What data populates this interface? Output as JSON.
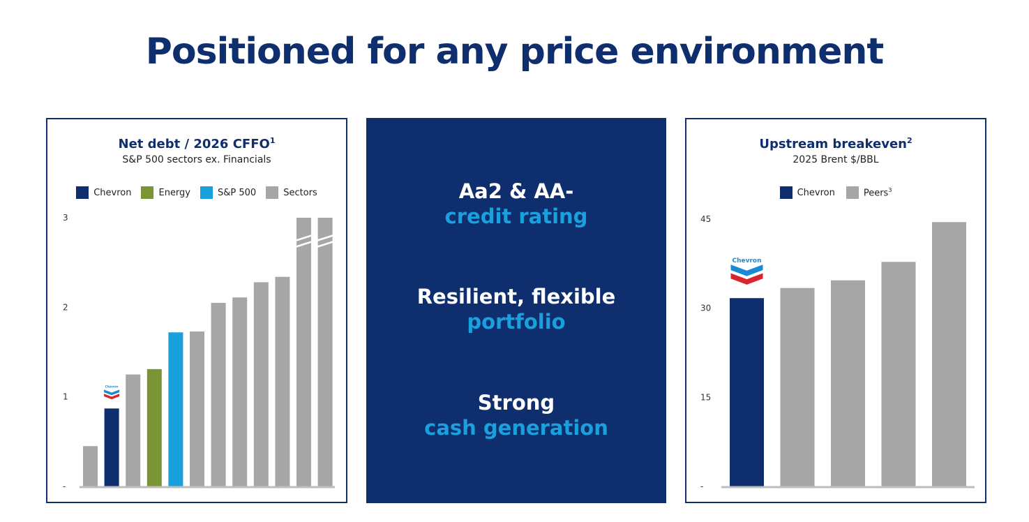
{
  "page": {
    "title": "Positioned for any price environment"
  },
  "colors": {
    "navy": "#0f2e6e",
    "green": "#7a9634",
    "cyan": "#1aa0dc",
    "gray": "#a6a6a6",
    "chevron_red": "#d9262e",
    "chevron_blue": "#1a8ad4"
  },
  "left_chart": {
    "title": "Net debt / 2026 CFFO",
    "title_sup": "1",
    "subtitle": "S&P 500 sectors ex. Financials",
    "legend": [
      {
        "label": "Chevron",
        "color": "#0f2e6e"
      },
      {
        "label": "Energy",
        "color": "#7a9634"
      },
      {
        "label": "S&P 500",
        "color": "#1aa0dc"
      },
      {
        "label": "Sectors",
        "color": "#a6a6a6"
      }
    ],
    "logo_text": "Chevron"
  },
  "middle_panel": {
    "blocks": [
      {
        "white": "Aa2 & AA-",
        "blue": "credit rating"
      },
      {
        "white": "Resilient, flexible",
        "blue": "portfolio"
      },
      {
        "white": "Strong",
        "blue": "cash generation"
      }
    ]
  },
  "right_chart": {
    "title": "Upstream breakeven",
    "title_sup": "2",
    "subtitle": "2025 Brent $/BBL",
    "legend": [
      {
        "label": "Chevron",
        "color": "#0f2e6e",
        "sup": ""
      },
      {
        "label": "Peers",
        "color": "#a6a6a6",
        "sup": "3"
      }
    ],
    "logo_text": "Chevron"
  },
  "chart_data": [
    {
      "type": "bar",
      "title": "Net debt / 2026 CFFO",
      "subtitle": "S&P 500 sectors ex. Financials",
      "y_ticks": [
        "-",
        "1",
        "2",
        "3"
      ],
      "ylim": [
        0,
        3
      ],
      "grid": false,
      "legend_position": "top-center",
      "axis_break_on_last_two": true,
      "series": [
        {
          "name": "Sectors",
          "values": [
            0.45,
            null,
            1.25,
            null,
            null,
            1.73,
            2.05,
            2.11,
            2.28,
            2.34,
            3.0,
            3.0
          ]
        },
        {
          "name": "Chevron",
          "values": [
            null,
            0.87,
            null,
            null,
            null,
            null,
            null,
            null,
            null,
            null,
            null,
            null
          ]
        },
        {
          "name": "Energy",
          "values": [
            null,
            null,
            null,
            1.31,
            null,
            null,
            null,
            null,
            null,
            null,
            null,
            null
          ]
        },
        {
          "name": "S&P 500",
          "values": [
            null,
            null,
            null,
            null,
            1.72,
            null,
            null,
            null,
            null,
            null,
            null,
            null
          ]
        }
      ],
      "bar_colors": [
        "#a6a6a6",
        "#0f2e6e",
        "#a6a6a6",
        "#7a9634",
        "#1aa0dc",
        "#a6a6a6",
        "#a6a6a6",
        "#a6a6a6",
        "#a6a6a6",
        "#a6a6a6",
        "#a6a6a6",
        "#a6a6a6"
      ]
    },
    {
      "type": "bar",
      "title": "Upstream breakeven",
      "subtitle": "2025 Brent $/BBL",
      "y_ticks": [
        "-",
        "15",
        "30",
        "45"
      ],
      "ylim": [
        0,
        45
      ],
      "grid": false,
      "legend_position": "top-center",
      "series": [
        {
          "name": "Chevron",
          "values": [
            31.7,
            null,
            null,
            null,
            null
          ]
        },
        {
          "name": "Peers",
          "values": [
            null,
            33.4,
            34.7,
            37.8,
            44.5
          ]
        }
      ],
      "bar_colors": [
        "#0f2e6e",
        "#a6a6a6",
        "#a6a6a6",
        "#a6a6a6",
        "#a6a6a6"
      ]
    }
  ]
}
